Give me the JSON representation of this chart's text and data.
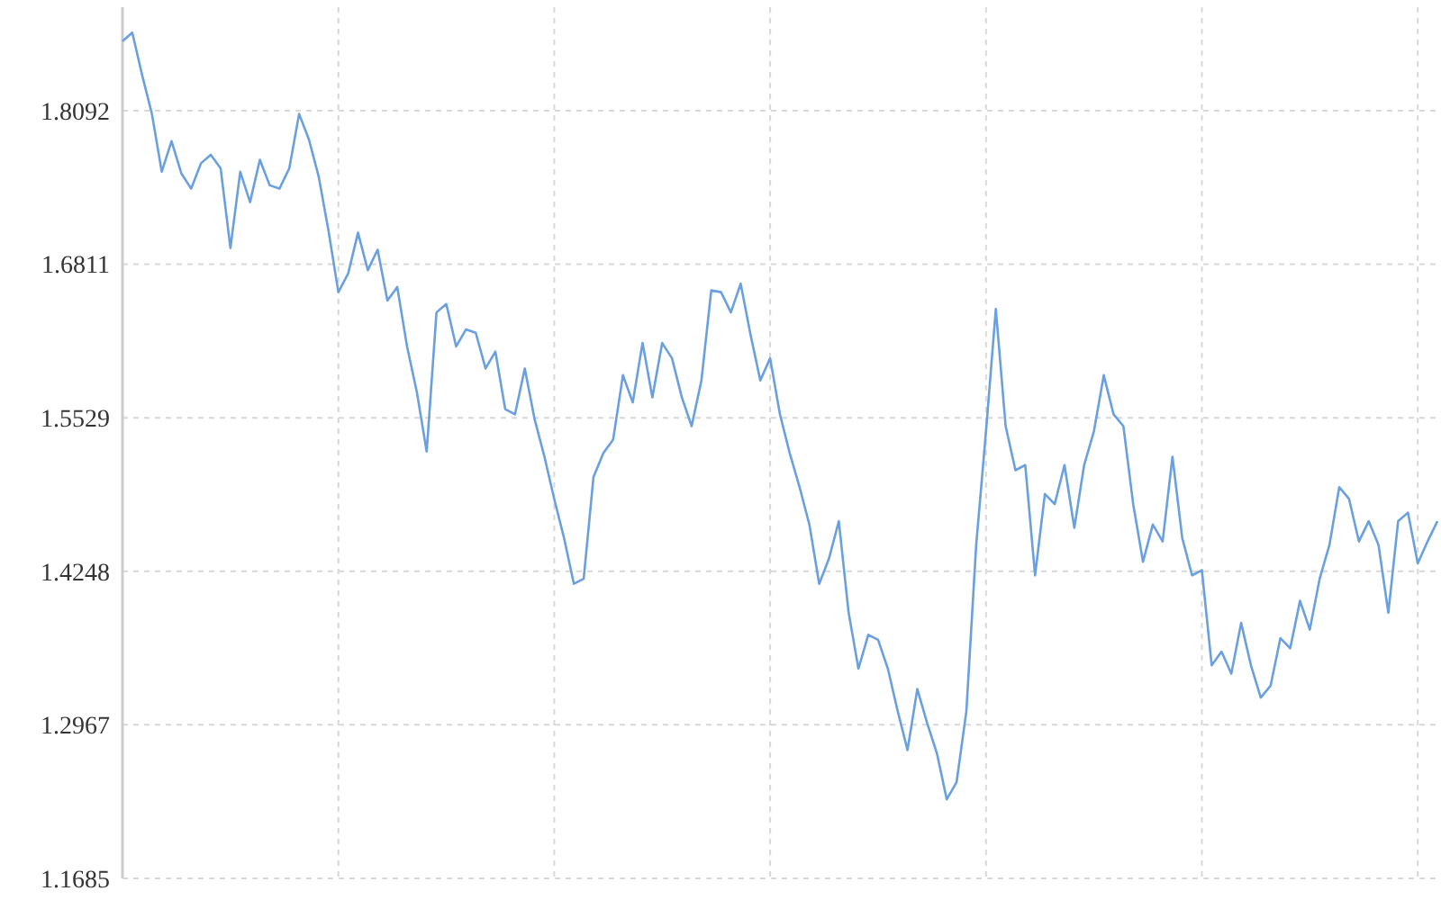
{
  "chart_data": {
    "type": "line",
    "categories": [
      null,
      null,
      null,
      null,
      null,
      null,
      null,
      null,
      null,
      null,
      null,
      null,
      null,
      null,
      null,
      null,
      null,
      null,
      null,
      null,
      null,
      null,
      null,
      null,
      null,
      null,
      null,
      null,
      null,
      null,
      null,
      null,
      null,
      null,
      null,
      null,
      null,
      null,
      null,
      null,
      null,
      null,
      null,
      null,
      null,
      null,
      null,
      null,
      null,
      null,
      null,
      null,
      null,
      null,
      null,
      null,
      null,
      null,
      null,
      null,
      null,
      null,
      null,
      null,
      null,
      null,
      null,
      null,
      null,
      null,
      null,
      null,
      null,
      null,
      null,
      null,
      null,
      null,
      null,
      null,
      null,
      null,
      null,
      null,
      null,
      null,
      null,
      null,
      null,
      null,
      null,
      null,
      null,
      null,
      null,
      null,
      null,
      null,
      null,
      null,
      null,
      null,
      null,
      null,
      null,
      null,
      null,
      null,
      null,
      null,
      null,
      null,
      null,
      null,
      null,
      null,
      null,
      null,
      null,
      null,
      null,
      null,
      null,
      null,
      null,
      null,
      null,
      null,
      null,
      null,
      null,
      null,
      null,
      null,
      null
    ],
    "series": [
      {
        "color": "#6a9fe0",
        "values": [
          1.8672,
          1.8743,
          1.8389,
          1.8064,
          1.7582,
          1.7837,
          1.7568,
          1.7441,
          1.7653,
          1.7724,
          1.7611,
          1.6945,
          1.7582,
          1.7328,
          1.7682,
          1.7469,
          1.7441,
          1.7611,
          1.8064,
          1.7851,
          1.754,
          1.7087,
          1.6577,
          1.6733,
          1.7073,
          1.6761,
          1.6931,
          1.6507,
          1.662,
          1.6124,
          1.5742,
          1.5247,
          1.6408,
          1.6478,
          1.6124,
          1.6266,
          1.6238,
          1.594,
          1.6082,
          1.5601,
          1.5558,
          1.594,
          1.5516,
          1.5204,
          1.4851,
          1.4525,
          1.4143,
          1.4185,
          1.5035,
          1.5233,
          1.5346,
          1.5884,
          1.5657,
          1.6153,
          1.57,
          1.6153,
          1.6025,
          1.57,
          1.5459,
          1.5841,
          1.6592,
          1.6577,
          1.6408,
          1.6648,
          1.6224,
          1.5841,
          1.6025,
          1.5558,
          1.5233,
          1.495,
          1.4638,
          1.4143,
          1.4355,
          1.4666,
          1.3902,
          1.3435,
          1.3718,
          1.3676,
          1.3435,
          1.3081,
          1.2756,
          1.3265,
          1.2982,
          1.2727,
          1.2345,
          1.2487,
          1.3081,
          1.4468,
          1.5417,
          1.6436,
          1.5459,
          1.5091,
          1.5134,
          1.4214,
          1.4893,
          1.4808,
          1.5134,
          1.461,
          1.5134,
          1.5417,
          1.5884,
          1.5558,
          1.5459,
          1.4808,
          1.4327,
          1.4638,
          1.4497,
          1.5204,
          1.4525,
          1.4214,
          1.4256,
          1.3463,
          1.3577,
          1.3393,
          1.3817,
          1.3463,
          1.3194,
          1.3293,
          1.369,
          1.3605,
          1.4001,
          1.3761,
          1.4185,
          1.4468,
          1.495,
          1.4851,
          1.4497,
          1.4666,
          1.4468,
          1.3902,
          1.4666,
          1.4737,
          1.4313,
          1.4497,
          1.4666
        ]
      }
    ],
    "ylim": [
      1.1685,
      1.8955
    ],
    "yticks": [
      1.1685,
      1.2967,
      1.4248,
      1.5529,
      1.6811,
      1.8092
    ],
    "tick_labels": "y",
    "grid": true,
    "marker": "none",
    "line_style": "solid"
  }
}
